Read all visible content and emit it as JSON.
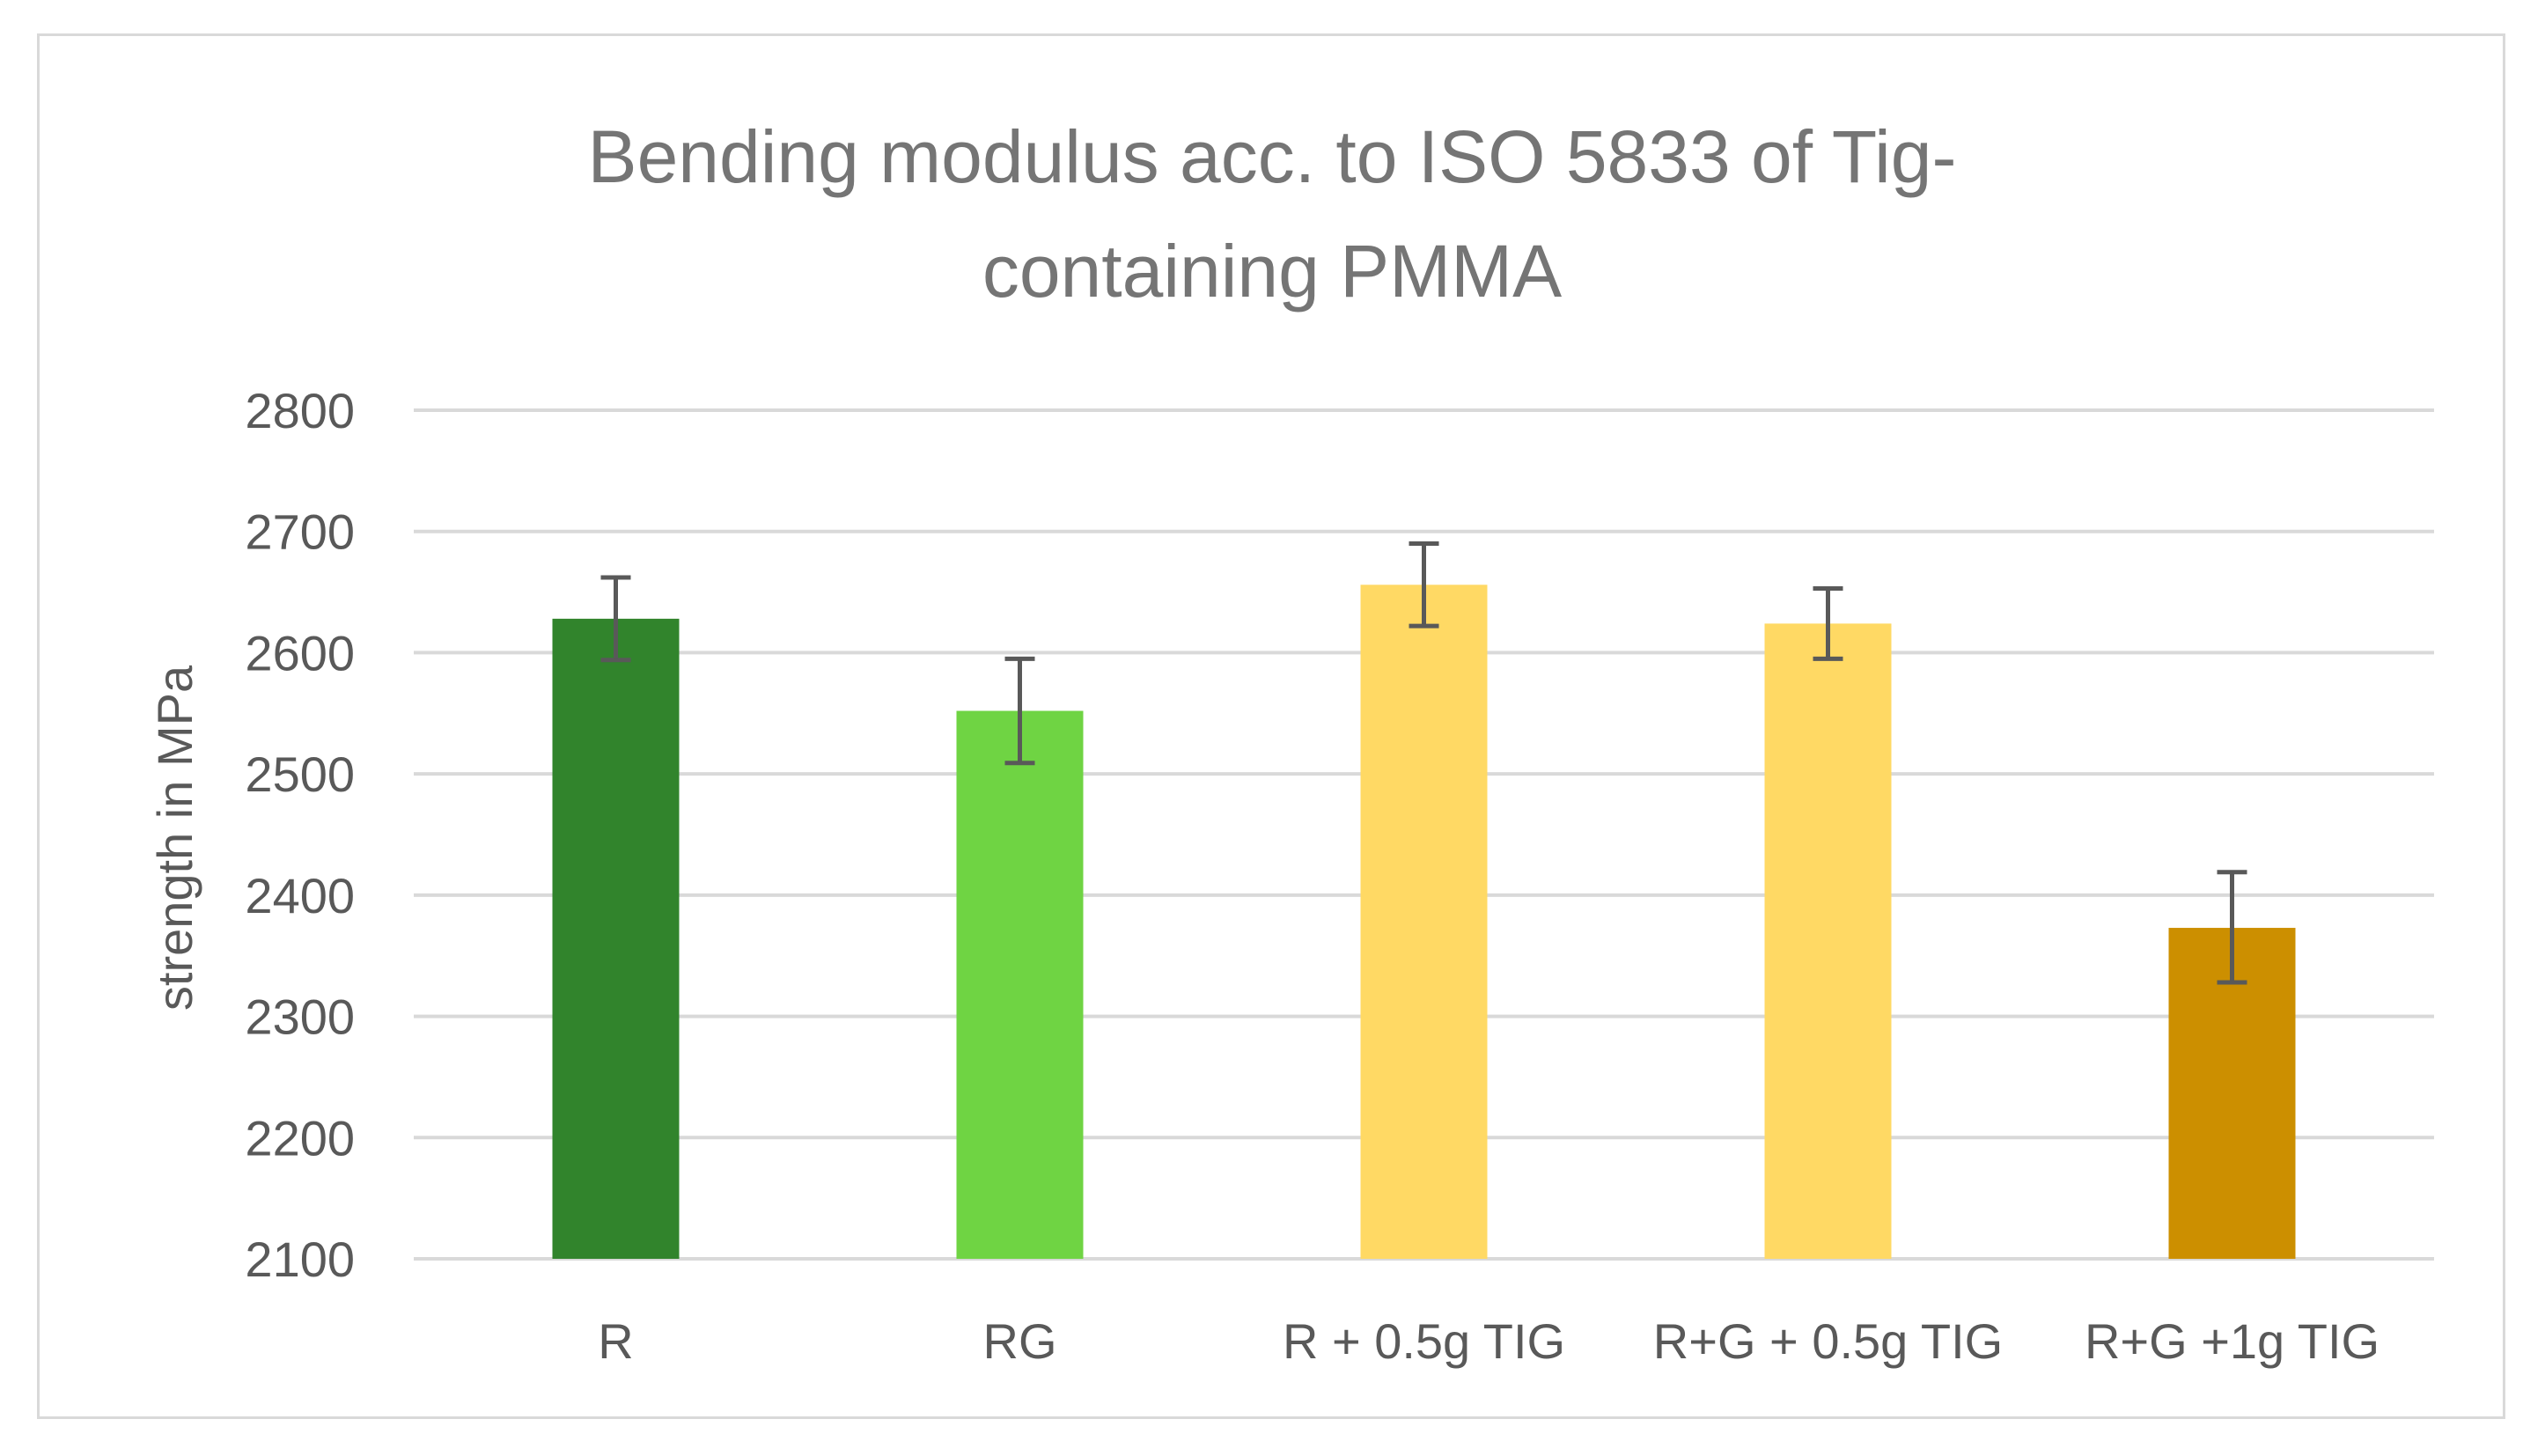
{
  "chart_data": {
    "type": "bar",
    "title_lines": [
      "Bending modulus acc. to ISO 5833 of Tig-",
      "containing PMMA"
    ],
    "xlabel": "",
    "ylabel": "strength in MPa",
    "ylim": [
      2100,
      2800
    ],
    "yticks": [
      2100,
      2200,
      2300,
      2400,
      2500,
      2600,
      2700,
      2800
    ],
    "grid": true,
    "categories": [
      "R",
      "RG",
      "R + 0.5g TIG",
      "R+G + 0.5g TIG",
      "R+G +1g TIG"
    ],
    "values": [
      2628,
      2552,
      2656,
      2624,
      2373
    ],
    "error_low": [
      2594,
      2509,
      2622,
      2595,
      2328
    ],
    "error_high": [
      2662,
      2595,
      2690,
      2653,
      2419
    ],
    "colors": [
      "#31842c",
      "#6fd443",
      "#ffd964",
      "#ffd964",
      "#cc8f00"
    ]
  }
}
